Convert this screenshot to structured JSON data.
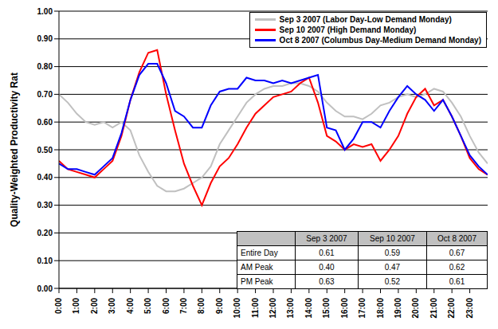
{
  "chart_data": {
    "type": "line",
    "y_label": "Quality-Weighted Productivity Rat",
    "legend": "upper right",
    "grid": true,
    "x": [
      0,
      0.5,
      1,
      1.5,
      2,
      2.5,
      3,
      3.5,
      4,
      4.5,
      5,
      5.5,
      6,
      6.5,
      7,
      7.5,
      8,
      8.5,
      9,
      9.5,
      10,
      10.5,
      11,
      11.5,
      12,
      12.5,
      13,
      13.5,
      14,
      14.5,
      15,
      15.5,
      16,
      16.5,
      17,
      17.5,
      18,
      18.5,
      19,
      19.5,
      20,
      20.5,
      21,
      21.5,
      22,
      22.5,
      23,
      23.5,
      24
    ],
    "xlim": [
      0,
      24
    ],
    "xticks": [
      {
        "value": 0,
        "label": "0:00"
      },
      {
        "value": 1,
        "label": "1:00"
      },
      {
        "value": 2,
        "label": "2:00"
      },
      {
        "value": 3,
        "label": "3:00"
      },
      {
        "value": 4,
        "label": "4:00"
      },
      {
        "value": 5,
        "label": "5:00"
      },
      {
        "value": 6,
        "label": "6:00"
      },
      {
        "value": 7,
        "label": "7:00"
      },
      {
        "value": 8,
        "label": "8:00"
      },
      {
        "value": 9,
        "label": "9:00"
      },
      {
        "value": 10,
        "label": "10:00"
      },
      {
        "value": 11,
        "label": "11:00"
      },
      {
        "value": 12,
        "label": "12:00"
      },
      {
        "value": 13,
        "label": "13:00"
      },
      {
        "value": 14,
        "label": "14:00"
      },
      {
        "value": 15,
        "label": "15:00"
      },
      {
        "value": 16,
        "label": "16:00"
      },
      {
        "value": 17,
        "label": "17:00"
      },
      {
        "value": 18,
        "label": "18:00"
      },
      {
        "value": 19,
        "label": "19:00"
      },
      {
        "value": 20,
        "label": "20:00"
      },
      {
        "value": 21,
        "label": "21:00"
      },
      {
        "value": 22,
        "label": "22:00"
      },
      {
        "value": 23,
        "label": "23:00"
      }
    ],
    "ylim": [
      0,
      1
    ],
    "yticks": [
      {
        "value": 0,
        "label": "0.00"
      },
      {
        "value": 0.1,
        "label": "0.10"
      },
      {
        "value": 0.2,
        "label": "0.20"
      },
      {
        "value": 0.3,
        "label": "0.30"
      },
      {
        "value": 0.4,
        "label": "0.40"
      },
      {
        "value": 0.5,
        "label": "0.50"
      },
      {
        "value": 0.6,
        "label": "0.60"
      },
      {
        "value": 0.7,
        "label": "0.70"
      },
      {
        "value": 0.8,
        "label": "0.80"
      },
      {
        "value": 0.9,
        "label": "0.90"
      },
      {
        "value": 1,
        "label": "1.00"
      }
    ],
    "series": [
      {
        "name": "Sep 3 2007 (Labor Day-Low Demand Monday)",
        "color": "#c0c0c0",
        "values": [
          0.7,
          0.67,
          0.63,
          0.6,
          0.59,
          0.6,
          0.58,
          0.6,
          0.57,
          0.48,
          0.42,
          0.37,
          0.35,
          0.35,
          0.36,
          0.38,
          0.4,
          0.44,
          0.52,
          0.57,
          0.62,
          0.67,
          0.7,
          0.72,
          0.73,
          0.73,
          0.74,
          0.74,
          0.73,
          0.71,
          0.67,
          0.64,
          0.62,
          0.62,
          0.61,
          0.63,
          0.66,
          0.67,
          0.69,
          0.7,
          0.69,
          0.7,
          0.72,
          0.71,
          0.67,
          0.62,
          0.55,
          0.49,
          0.45
        ]
      },
      {
        "name": "Sep 10 2007 (High Demand Monday)",
        "color": "#ff0000",
        "values": [
          0.46,
          0.43,
          0.42,
          0.41,
          0.4,
          0.43,
          0.46,
          0.55,
          0.68,
          0.78,
          0.85,
          0.86,
          0.7,
          0.57,
          0.45,
          0.37,
          0.3,
          0.38,
          0.44,
          0.47,
          0.52,
          0.58,
          0.63,
          0.66,
          0.69,
          0.7,
          0.71,
          0.74,
          0.76,
          0.67,
          0.55,
          0.53,
          0.5,
          0.52,
          0.51,
          0.52,
          0.46,
          0.5,
          0.55,
          0.63,
          0.69,
          0.72,
          0.66,
          0.68,
          0.62,
          0.55,
          0.47,
          0.43,
          0.41
        ]
      },
      {
        "name": "Oct 8 2007 (Columbus Day-Medium Demand Monday)",
        "color": "#0000ff",
        "values": [
          0.45,
          0.43,
          0.43,
          0.42,
          0.41,
          0.44,
          0.47,
          0.56,
          0.68,
          0.77,
          0.81,
          0.81,
          0.74,
          0.64,
          0.62,
          0.58,
          0.58,
          0.66,
          0.71,
          0.72,
          0.72,
          0.76,
          0.75,
          0.75,
          0.74,
          0.75,
          0.74,
          0.75,
          0.76,
          0.77,
          0.58,
          0.57,
          0.5,
          0.54,
          0.6,
          0.6,
          0.58,
          0.64,
          0.69,
          0.73,
          0.7,
          0.68,
          0.64,
          0.68,
          0.62,
          0.55,
          0.48,
          0.44,
          0.41
        ]
      }
    ]
  },
  "table": {
    "columns": [
      "Sep 3 2007",
      "Sep 10 2007",
      "Oct 8 2007"
    ],
    "rows": [
      {
        "label": "Entire Day",
        "values": [
          "0.61",
          "0.59",
          "0.67"
        ]
      },
      {
        "label": "AM Peak",
        "values": [
          "0.40",
          "0.47",
          "0.62"
        ]
      },
      {
        "label": "PM Peak",
        "values": [
          "0.63",
          "0.52",
          "0.61"
        ]
      }
    ]
  }
}
